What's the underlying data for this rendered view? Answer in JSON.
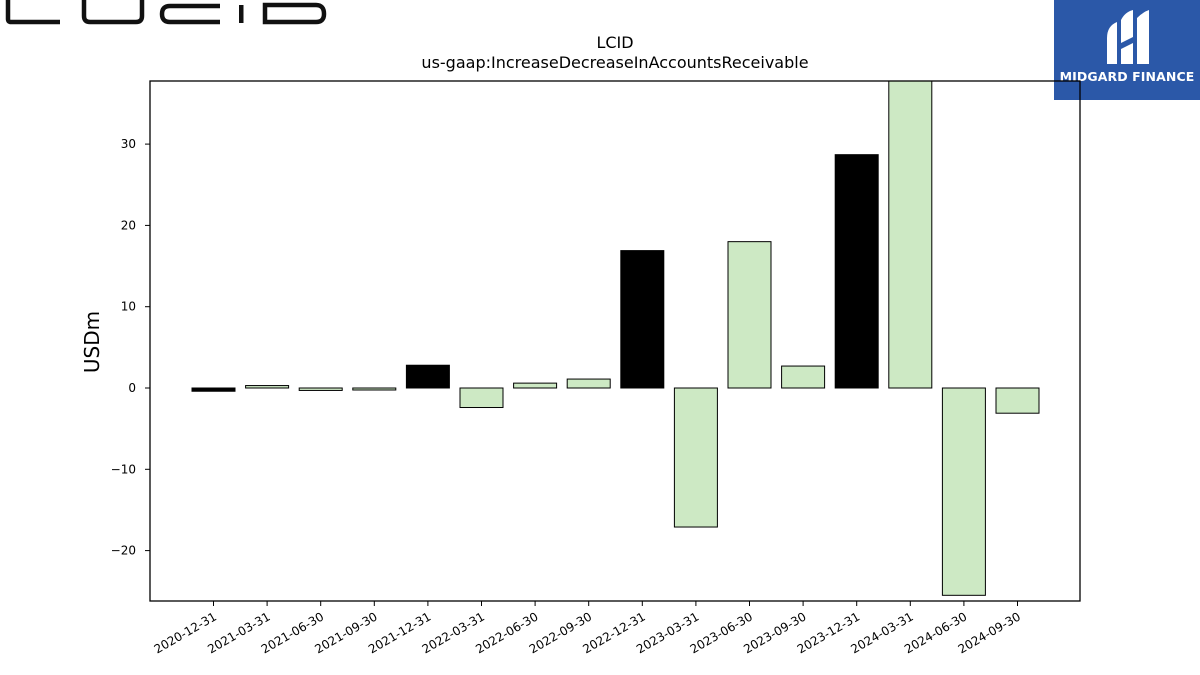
{
  "brand": {
    "company_logo_text": "LUCID",
    "publisher_badge": {
      "label": "MIDGARD FINANCE",
      "background": "#2b58a8"
    }
  },
  "chart_data": {
    "type": "bar",
    "title": "LCID",
    "subtitle": "us-gaap:IncreaseDecreaseInAccountsReceivable",
    "xlabel": "",
    "ylabel": "USDm",
    "categories": [
      "2020-12-31",
      "2021-03-31",
      "2021-06-30",
      "2021-09-30",
      "2021-12-31",
      "2022-03-31",
      "2022-06-30",
      "2022-09-30",
      "2022-12-31",
      "2023-03-31",
      "2023-06-30",
      "2023-09-30",
      "2023-12-31",
      "2024-03-31",
      "2024-06-30",
      "2024-09-30"
    ],
    "values": [
      -0.4,
      0.3,
      -0.3,
      -0.2,
      2.8,
      -2.4,
      0.6,
      1.1,
      16.9,
      -17.1,
      18.0,
      2.7,
      28.7,
      38.5,
      -25.5,
      -3.1
    ],
    "highlight": [
      true,
      false,
      false,
      false,
      true,
      false,
      false,
      false,
      true,
      false,
      false,
      false,
      true,
      false,
      false,
      false
    ],
    "colors": {
      "highlight": "#000000",
      "default": "#cde9c4",
      "edge": "#000000"
    },
    "ylim": [
      -26,
      38
    ],
    "yticks": [
      -20,
      -10,
      0,
      10,
      20,
      30
    ],
    "grid": false,
    "legend": "none"
  }
}
